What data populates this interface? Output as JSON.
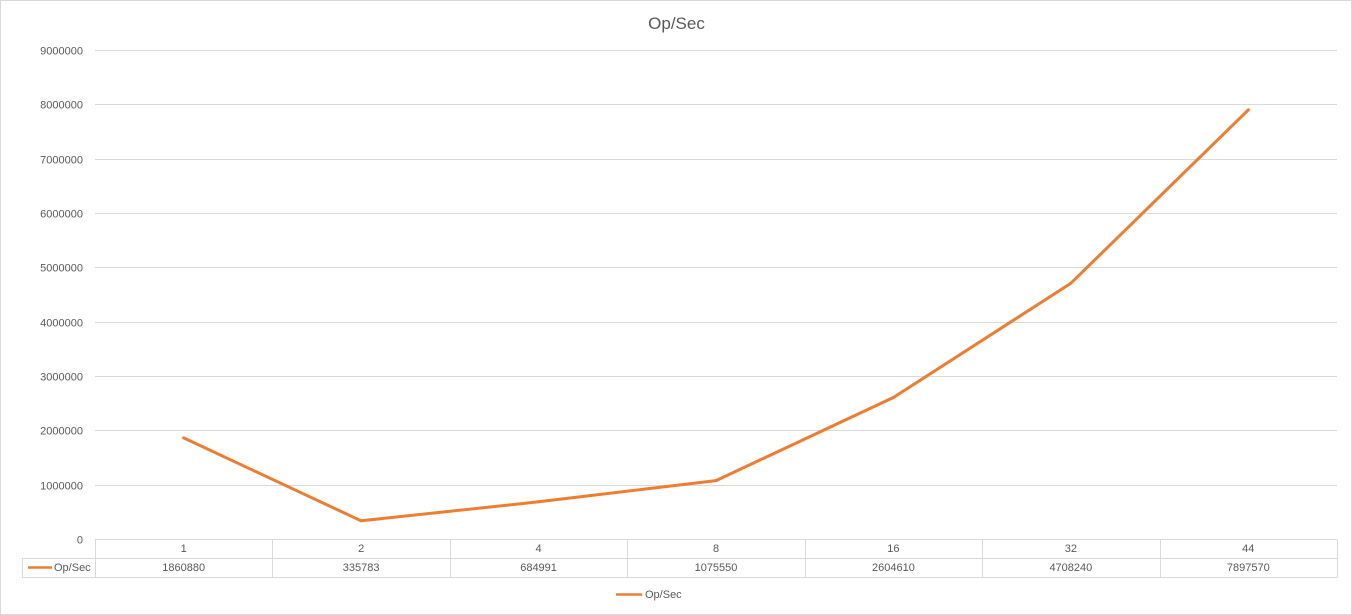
{
  "chart_data": {
    "type": "line",
    "title": "Op/Sec",
    "xlabel": "",
    "ylabel": "",
    "categories": [
      "1",
      "2",
      "4",
      "8",
      "16",
      "32",
      "44"
    ],
    "series": [
      {
        "name": "Op/Sec",
        "values": [
          1860880,
          335783,
          684991,
          1075550,
          2604610,
          4708240,
          7897570
        ],
        "value_labels": [
          "1860880",
          "335783",
          "684991",
          "1075550",
          "2604610",
          "4708240",
          "7897570"
        ],
        "color": "#ED7D31"
      }
    ],
    "ylim": [
      0,
      9000000
    ],
    "yticks": [
      0,
      1000000,
      2000000,
      3000000,
      4000000,
      5000000,
      6000000,
      7000000,
      8000000,
      9000000
    ],
    "ytick_labels": [
      "0",
      "1000000",
      "2000000",
      "3000000",
      "4000000",
      "5000000",
      "6000000",
      "7000000",
      "8000000",
      "9000000"
    ],
    "grid": true,
    "data_table": true,
    "legend": "bottom-center",
    "colors": {
      "gridline": "#D9D9D9",
      "border": "#D9D9D9",
      "text": "#595959"
    }
  }
}
